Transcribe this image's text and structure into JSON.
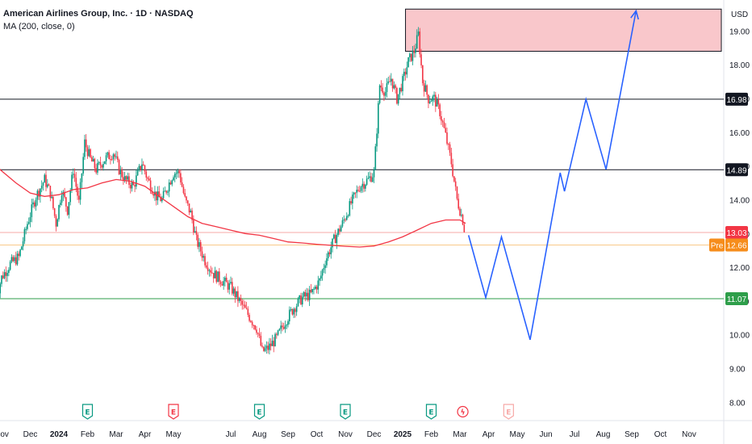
{
  "header": {
    "symbol_line": "American Airlines Group, Inc. · 1D · NASDAQ",
    "indicator": "MA (200, close, 0)"
  },
  "axis": {
    "currency": "USD",
    "price_ticks": [
      "8.00",
      "9.00",
      "10.00",
      "11.00",
      "12.00",
      "13.00",
      "14.00",
      "15.00",
      "16.00",
      "17.00",
      "18.00",
      "19.00"
    ],
    "time_ticks": [
      {
        "label": "Nov",
        "bold": false,
        "m": -2
      },
      {
        "label": "Dec",
        "bold": false,
        "m": -1
      },
      {
        "label": "2024",
        "bold": true,
        "m": 0
      },
      {
        "label": "Feb",
        "bold": false,
        "m": 1
      },
      {
        "label": "Mar",
        "bold": false,
        "m": 2
      },
      {
        "label": "Apr",
        "bold": false,
        "m": 3
      },
      {
        "label": "May",
        "bold": false,
        "m": 4
      },
      {
        "label": "Jul",
        "bold": false,
        "m": 6
      },
      {
        "label": "Aug",
        "bold": false,
        "m": 7
      },
      {
        "label": "Sep",
        "bold": false,
        "m": 8
      },
      {
        "label": "Oct",
        "bold": false,
        "m": 9
      },
      {
        "label": "Nov",
        "bold": false,
        "m": 10
      },
      {
        "label": "Dec",
        "bold": false,
        "m": 11
      },
      {
        "label": "2025",
        "bold": true,
        "m": 12
      },
      {
        "label": "Feb",
        "bold": false,
        "m": 13
      },
      {
        "label": "Mar",
        "bold": false,
        "m": 14
      },
      {
        "label": "Apr",
        "bold": false,
        "m": 15
      },
      {
        "label": "May",
        "bold": false,
        "m": 16
      },
      {
        "label": "Jun",
        "bold": false,
        "m": 17
      },
      {
        "label": "Jul",
        "bold": false,
        "m": 18
      },
      {
        "label": "Aug",
        "bold": false,
        "m": 19
      },
      {
        "label": "Sep",
        "bold": false,
        "m": 20
      },
      {
        "label": "Oct",
        "bold": false,
        "m": 21
      },
      {
        "label": "Nov",
        "bold": false,
        "m": 22
      }
    ]
  },
  "levels": [
    {
      "name": "resistance-16-98",
      "value": 16.98,
      "label": "16.98",
      "color": "#131722",
      "label_bg": "#131722",
      "label_fg": "#ffffff"
    },
    {
      "name": "resistance-14-89",
      "value": 14.89,
      "label": "14.89",
      "color": "#131722",
      "label_bg": "#131722",
      "label_fg": "#ffffff"
    },
    {
      "name": "last-price-13-03",
      "value": 13.03,
      "label": "13.03",
      "color": "#f7a9a7",
      "label_bg": "#f23645",
      "label_fg": "#ffffff"
    },
    {
      "name": "premarket-12-66",
      "value": 12.66,
      "label": "12.66",
      "prefix": "Pre",
      "color": "#f9c98a",
      "label_bg": "#f68d1c",
      "label_fg": "#ffffff"
    },
    {
      "name": "support-11-07",
      "value": 11.07,
      "label": "11.07",
      "color": "#2e9e4a",
      "label_bg": "#2e9e4a",
      "label_fg": "#ffffff"
    }
  ],
  "events": [
    {
      "type": "earnings",
      "m": 1.0,
      "color": "#089981",
      "symbol": "E"
    },
    {
      "type": "earnings",
      "m": 4.0,
      "color": "#f23645",
      "symbol": "E"
    },
    {
      "type": "earnings",
      "m": 7.0,
      "color": "#089981",
      "symbol": "E"
    },
    {
      "type": "earnings",
      "m": 10.0,
      "color": "#089981",
      "symbol": "E"
    },
    {
      "type": "earnings",
      "m": 13.0,
      "color": "#089981",
      "symbol": "E"
    },
    {
      "type": "dividend",
      "m": 14.1,
      "color": "#f23645",
      "symbol": "ϟ"
    },
    {
      "type": "earnings-future",
      "m": 15.7,
      "color": "#f7a9a7",
      "symbol": "E"
    }
  ],
  "colors": {
    "up": "#089981",
    "down": "#f23645",
    "ma": "#f23645",
    "projection": "#2962ff",
    "zone_fill": "#f9c7cb",
    "zone_border": "#131722"
  },
  "chart_data": {
    "type": "candlestick",
    "x_unit": "months since Jan 2024",
    "ylim": [
      7.6,
      19.8
    ],
    "price_series": {
      "name": "AAL",
      "points": [
        [
          -2.2,
          11.05
        ],
        [
          -2.0,
          11.7
        ],
        [
          -1.7,
          12.1
        ],
        [
          -1.4,
          12.3
        ],
        [
          -1.1,
          13.3
        ],
        [
          -0.8,
          14.1
        ],
        [
          -0.5,
          14.6
        ],
        [
          -0.3,
          14.2
        ],
        [
          -0.1,
          13.3
        ],
        [
          0.1,
          14.3
        ],
        [
          0.3,
          13.7
        ],
        [
          0.5,
          14.9
        ],
        [
          0.7,
          13.9
        ],
        [
          0.9,
          15.7
        ],
        [
          1.1,
          15.2
        ],
        [
          1.3,
          14.9
        ],
        [
          1.6,
          15.2
        ],
        [
          1.9,
          15.4
        ],
        [
          2.1,
          14.9
        ],
        [
          2.3,
          14.6
        ],
        [
          2.6,
          14.4
        ],
        [
          2.9,
          15.1
        ],
        [
          3.1,
          14.6
        ],
        [
          3.4,
          14.1
        ],
        [
          3.6,
          14.0
        ],
        [
          3.8,
          14.4
        ],
        [
          4.0,
          14.8
        ],
        [
          4.2,
          14.8
        ],
        [
          4.4,
          14.0
        ],
        [
          4.6,
          13.6
        ],
        [
          4.8,
          12.8
        ],
        [
          5.1,
          12.2
        ],
        [
          5.4,
          11.8
        ],
        [
          5.7,
          11.6
        ],
        [
          6.0,
          11.4
        ],
        [
          6.3,
          11.0
        ],
        [
          6.6,
          10.6
        ],
        [
          6.9,
          10.2
        ],
        [
          7.1,
          9.5
        ],
        [
          7.3,
          9.6
        ],
        [
          7.6,
          9.9
        ],
        [
          7.9,
          10.4
        ],
        [
          8.2,
          10.8
        ],
        [
          8.5,
          11.1
        ],
        [
          8.8,
          11.2
        ],
        [
          9.1,
          11.6
        ],
        [
          9.3,
          12.2
        ],
        [
          9.6,
          12.8
        ],
        [
          9.9,
          13.3
        ],
        [
          10.2,
          13.9
        ],
        [
          10.5,
          14.4
        ],
        [
          10.8,
          14.6
        ],
        [
          11.0,
          14.8
        ],
        [
          11.2,
          17.4
        ],
        [
          11.4,
          17.2
        ],
        [
          11.6,
          17.6
        ],
        [
          11.8,
          17.0
        ],
        [
          12.0,
          17.5
        ],
        [
          12.2,
          18.1
        ],
        [
          12.4,
          18.4
        ],
        [
          12.55,
          18.9
        ],
        [
          12.7,
          17.5
        ],
        [
          12.9,
          17.0
        ],
        [
          13.1,
          17.0
        ],
        [
          13.3,
          16.6
        ],
        [
          13.5,
          15.9
        ],
        [
          13.7,
          15.1
        ],
        [
          13.9,
          14.0
        ],
        [
          14.1,
          13.4
        ],
        [
          14.2,
          12.9
        ]
      ]
    },
    "ma200": {
      "name": "MA (200, close, 0)",
      "points": [
        [
          -2.2,
          15.0
        ],
        [
          -1.5,
          14.5
        ],
        [
          -1.0,
          14.2
        ],
        [
          -0.5,
          14.1
        ],
        [
          0,
          14.15
        ],
        [
          0.5,
          14.3
        ],
        [
          1.0,
          14.35
        ],
        [
          1.5,
          14.5
        ],
        [
          2.0,
          14.6
        ],
        [
          2.5,
          14.55
        ],
        [
          3.0,
          14.4
        ],
        [
          3.5,
          14.1
        ],
        [
          4.0,
          13.8
        ],
        [
          4.5,
          13.5
        ],
        [
          5.0,
          13.3
        ],
        [
          5.5,
          13.2
        ],
        [
          6.0,
          13.1
        ],
        [
          6.5,
          13.0
        ],
        [
          7.0,
          12.95
        ],
        [
          7.5,
          12.85
        ],
        [
          8.0,
          12.75
        ],
        [
          8.5,
          12.72
        ],
        [
          9.0,
          12.68
        ],
        [
          9.5,
          12.65
        ],
        [
          10.0,
          12.62
        ],
        [
          10.5,
          12.6
        ],
        [
          11.0,
          12.63
        ],
        [
          11.5,
          12.75
        ],
        [
          12.0,
          12.9
        ],
        [
          12.5,
          13.1
        ],
        [
          13.0,
          13.3
        ],
        [
          13.5,
          13.4
        ],
        [
          14.0,
          13.4
        ],
        [
          14.2,
          13.3
        ]
      ]
    },
    "projection": {
      "name": "forecast path",
      "points": [
        [
          14.3,
          12.95
        ],
        [
          14.9,
          11.1
        ],
        [
          15.45,
          12.9
        ],
        [
          16.45,
          9.85
        ],
        [
          17.5,
          14.8
        ],
        [
          17.65,
          14.25
        ],
        [
          18.4,
          16.98
        ],
        [
          19.1,
          14.9
        ],
        [
          20.15,
          19.6
        ]
      ]
    },
    "target_zone": {
      "m0": 12.1,
      "m1": 23.2,
      "y0": 18.4,
      "y1": 19.65
    }
  }
}
